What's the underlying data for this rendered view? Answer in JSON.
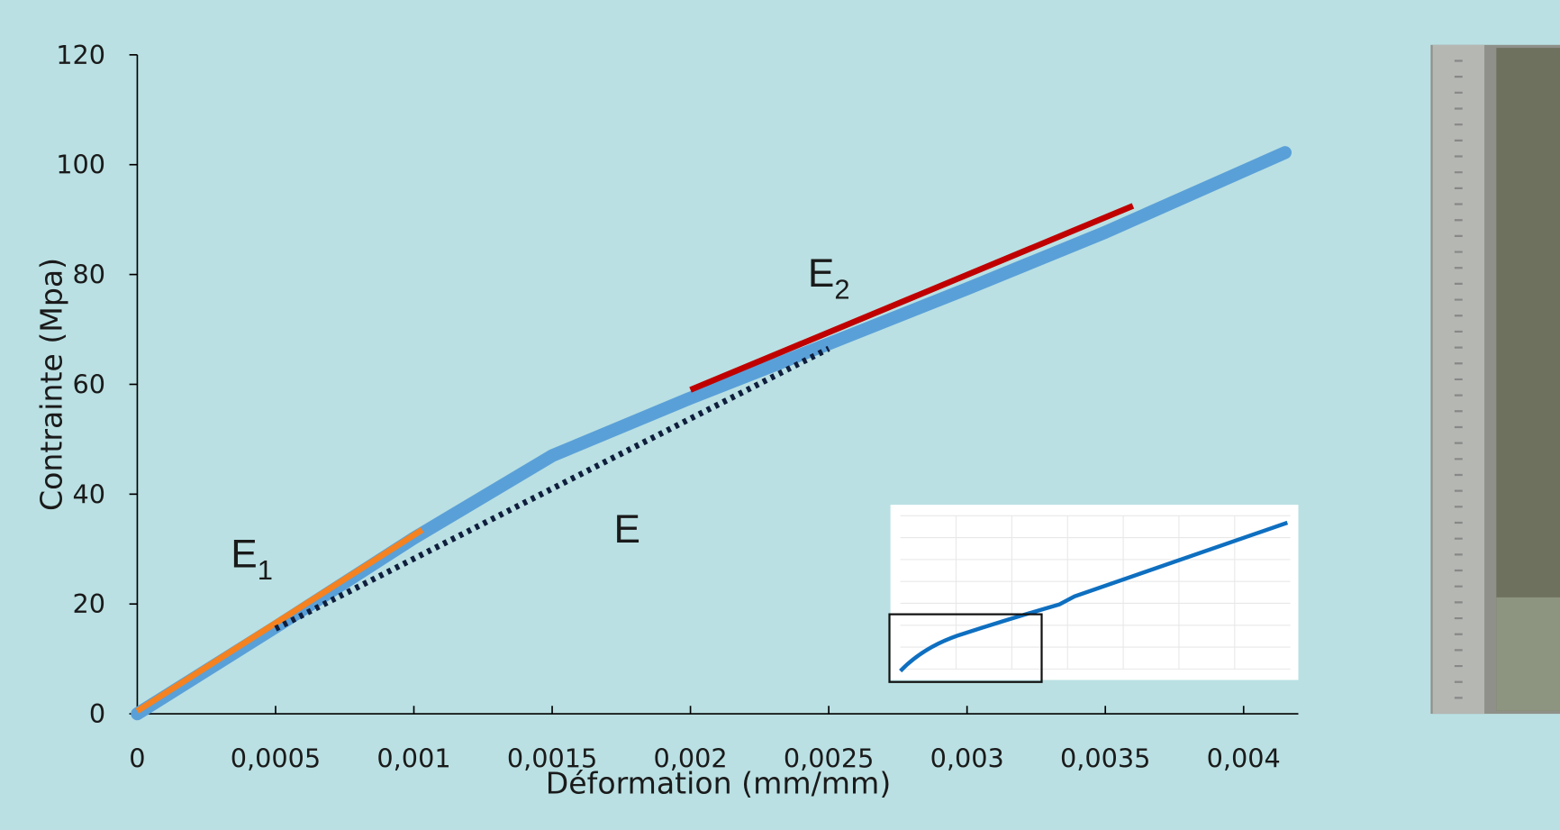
{
  "chart_data": {
    "type": "line",
    "xlabel": "Déformation (mm/mm)",
    "ylabel": "Contrainte (Mpa)",
    "xlim": [
      0,
      0.0042
    ],
    "ylim": [
      0,
      120
    ],
    "xticks": [
      0,
      {
        "value": 0.0005,
        "label": "0,0005"
      },
      {
        "value": 0.001,
        "label": "0,001"
      },
      {
        "value": 0.0015,
        "label": "0,0015"
      },
      {
        "value": 0.002,
        "label": "0,002"
      },
      {
        "value": 0.0025,
        "label": "0,0025"
      },
      {
        "value": 0.003,
        "label": "0,003"
      },
      {
        "value": 0.0035,
        "label": "0,0035"
      },
      {
        "value": 0.004,
        "label": "0,004"
      }
    ],
    "yticks": [
      0,
      20,
      40,
      60,
      80,
      100,
      120
    ],
    "series": [
      {
        "color": "#5aa0d8",
        "style": "thick",
        "x": [
          0,
          0.0005,
          0.001,
          0.0015,
          0.002,
          0.0025,
          0.003,
          0.0035,
          0.00415
        ],
        "values": [
          0,
          15.8,
          32,
          47,
          57.5,
          67.4,
          77.4,
          87.7,
          102.2
        ]
      },
      {
        "color": "#f58220",
        "style": "solid",
        "x": [
          0,
          0.00103
        ],
        "values": [
          0.5,
          33.5
        ]
      },
      {
        "color": "#c00000",
        "style": "solid",
        "x": [
          0.002,
          0.0036
        ],
        "values": [
          59,
          92.5
        ]
      },
      {
        "color": "#0f1e3c",
        "style": "dotted",
        "x": [
          0.0005,
          0.0025
        ],
        "values": [
          15.5,
          66.5
        ]
      }
    ],
    "annotations": [
      {
        "text": "E",
        "sub": "1"
      },
      {
        "text": "E",
        "sub": "2"
      },
      {
        "text": "E"
      }
    ]
  }
}
